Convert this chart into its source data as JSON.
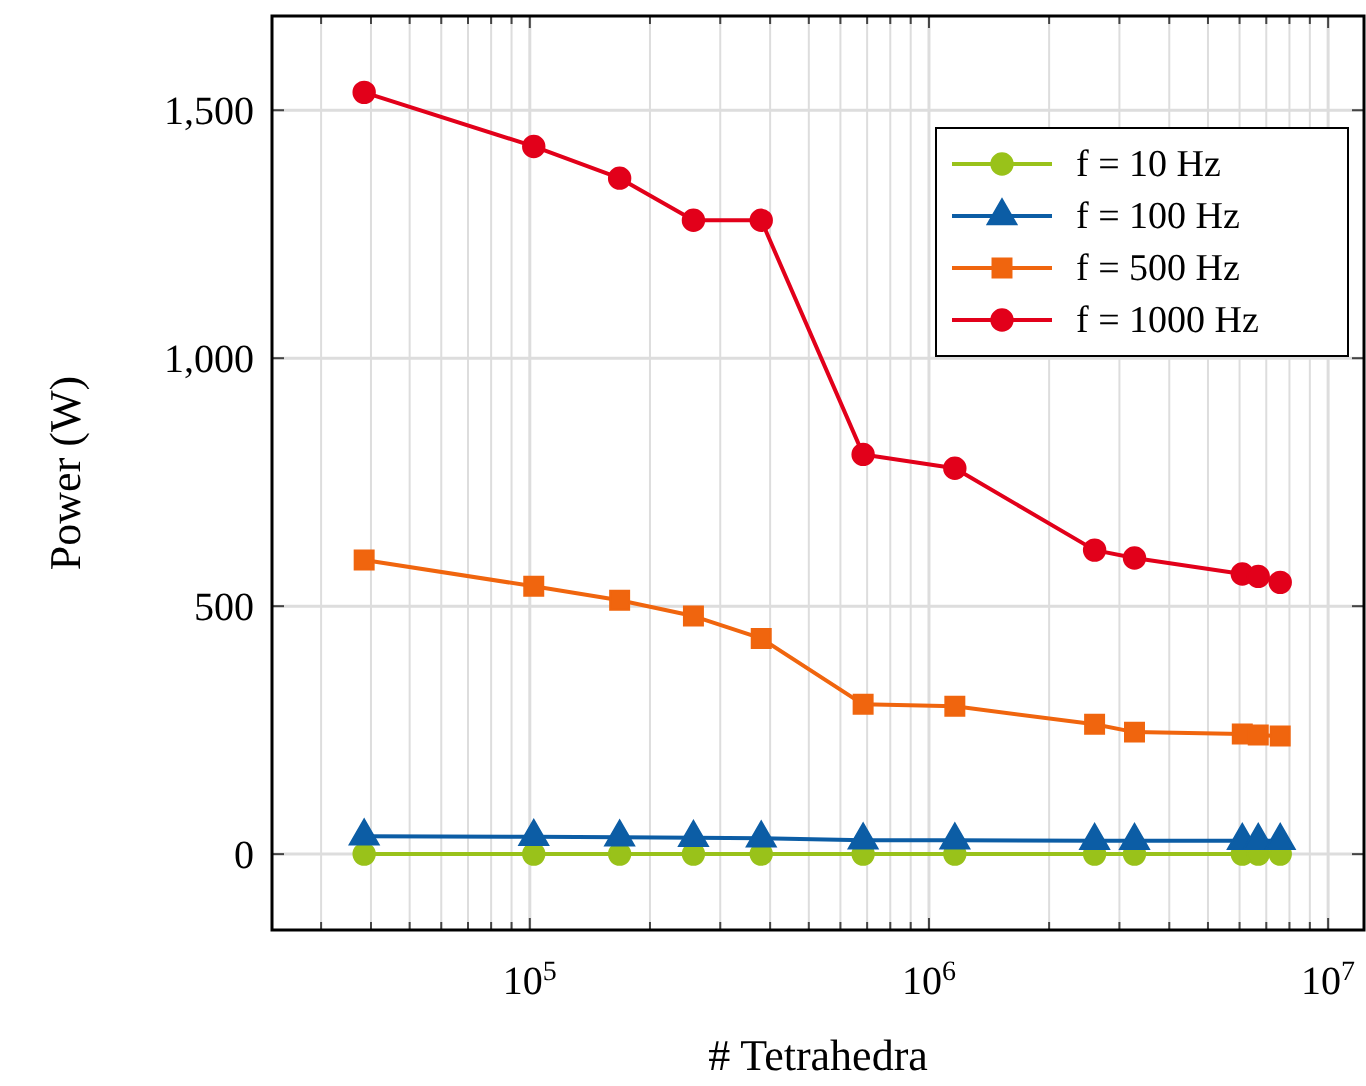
{
  "chart_data": {
    "type": "line",
    "xlabel": "# Tetrahedra",
    "ylabel": "Power (W)",
    "log": "x",
    "grid": true,
    "legend": "top right",
    "xlim": [
      22600,
      12300000
    ],
    "ylim": [
      -153,
      1690
    ],
    "xticks": [
      {
        "value": 30000,
        "label": null
      },
      {
        "value": 40000,
        "label": null
      },
      {
        "value": 50000,
        "label": null
      },
      {
        "value": 60000,
        "label": null
      },
      {
        "value": 70000,
        "label": null
      },
      {
        "value": 80000,
        "label": null
      },
      {
        "value": 90000,
        "label": null
      },
      {
        "value": 100000,
        "label": "10$^{5}$"
      },
      {
        "value": 200000,
        "label": null
      },
      {
        "value": 300000,
        "label": null
      },
      {
        "value": 400000,
        "label": null
      },
      {
        "value": 500000,
        "label": null
      },
      {
        "value": 600000,
        "label": null
      },
      {
        "value": 700000,
        "label": null
      },
      {
        "value": 800000,
        "label": null
      },
      {
        "value": 900000,
        "label": null
      },
      {
        "value": 1000000,
        "label": "10$^{6}$"
      },
      {
        "value": 2000000,
        "label": null
      },
      {
        "value": 3000000,
        "label": null
      },
      {
        "value": 4000000,
        "label": null
      },
      {
        "value": 5000000,
        "label": null
      },
      {
        "value": 6000000,
        "label": null
      },
      {
        "value": 7000000,
        "label": null
      },
      {
        "value": 8000000,
        "label": null
      },
      {
        "value": 9000000,
        "label": null
      },
      {
        "value": 10000000,
        "label": "10$^{7}$"
      }
    ],
    "yticks": [
      0,
      500,
      {
        "value": 1000,
        "label": "1,000"
      },
      {
        "value": 1500,
        "label": "1,500"
      }
    ],
    "x": [
      38460,
      102300,
      167900,
      257000,
      380000,
      684000,
      1161000,
      2600000,
      3273000,
      6095000,
      6683000,
      7586000
    ],
    "series": [
      {
        "name": "f = 10 Hz",
        "color": "#99c21a",
        "marker": "circle",
        "values": [
          0,
          0,
          0,
          0,
          0,
          0,
          0,
          0,
          0,
          0,
          0,
          0
        ]
      },
      {
        "name": "f = 100 Hz",
        "color": "#0c5da5",
        "marker": "triangle",
        "values": [
          36,
          35,
          34,
          33,
          32,
          28,
          28,
          27,
          27,
          27,
          27,
          27
        ]
      },
      {
        "name": "f = 500 Hz",
        "color": "#f0650e",
        "marker": "square",
        "values": [
          593,
          540,
          512,
          480,
          435,
          302,
          298,
          262,
          246,
          242,
          240,
          238
        ]
      },
      {
        "name": "f = 1000 Hz",
        "color": "#e2001a",
        "marker": "circle",
        "values": [
          1536,
          1427,
          1363,
          1278,
          1278,
          806,
          778,
          613,
          597,
          565,
          560,
          548
        ]
      }
    ]
  }
}
